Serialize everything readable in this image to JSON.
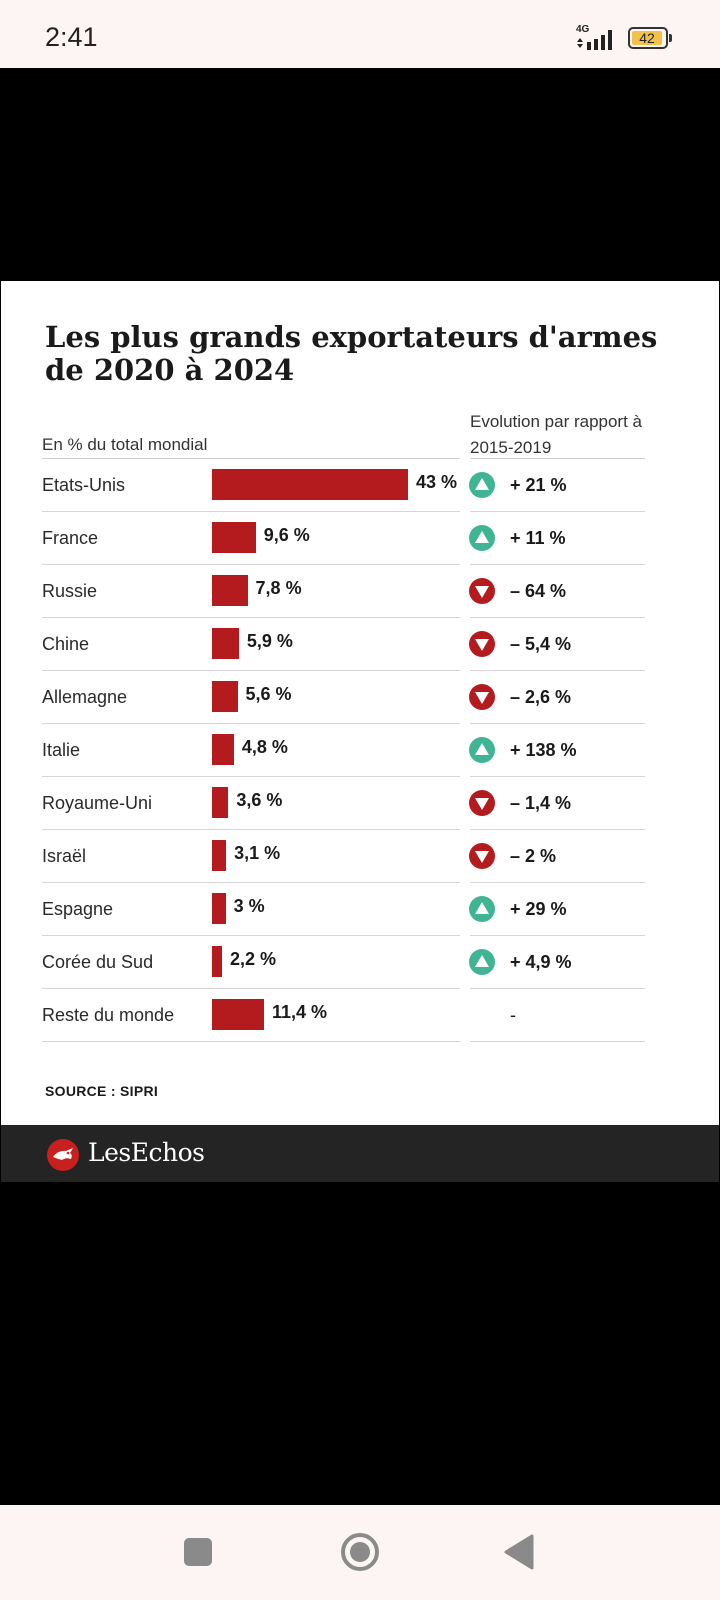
{
  "status": {
    "time": "2:41",
    "network": "4G",
    "battery": "42"
  },
  "colors": {
    "bar": "#b31b1e",
    "up": "#3fb596",
    "down": "#b31b1e"
  },
  "chart_data": {
    "type": "bar",
    "orientation": "horizontal",
    "title": "Les plus grands exportateurs d'armes de 2020 à 2024",
    "xlabel": "En % du total mondial",
    "evolution_header": "Evolution par rapport à 2015-2019",
    "xlim": [
      0,
      43
    ],
    "categories": [
      "Etats-Unis",
      "France",
      "Russie",
      "Chine",
      "Allemagne",
      "Italie",
      "Royaume-Uni",
      "Israël",
      "Espagne",
      "Corée du Sud",
      "Reste du monde"
    ],
    "values": [
      43,
      9.6,
      7.8,
      5.9,
      5.6,
      4.8,
      3.6,
      3.1,
      3,
      2.2,
      11.4
    ],
    "value_labels": [
      "43 %",
      "9,6 %",
      "7,8 %",
      "5,9 %",
      "5,6 %",
      "4,8 %",
      "3,6 %",
      "3,1 %",
      "3 %",
      "2,2 %",
      "11,4 %"
    ],
    "evolution": [
      21,
      11,
      -64,
      -5.4,
      -2.6,
      138,
      -1.4,
      -2,
      29,
      4.9,
      null
    ],
    "evolution_labels": [
      "+ 21 %",
      "+ 11 %",
      "– 64 %",
      "– 5,4 %",
      "– 2,6 %",
      "+ 138 %",
      "– 1,4 %",
      "– 2 %",
      "+ 29 %",
      "+ 4,9 %",
      "-"
    ],
    "direction": [
      "up",
      "up",
      "down",
      "down",
      "down",
      "up",
      "down",
      "down",
      "up",
      "up",
      "none"
    ],
    "source": "SOURCE : SIPRI"
  },
  "brand": {
    "name": "LesEchos"
  }
}
